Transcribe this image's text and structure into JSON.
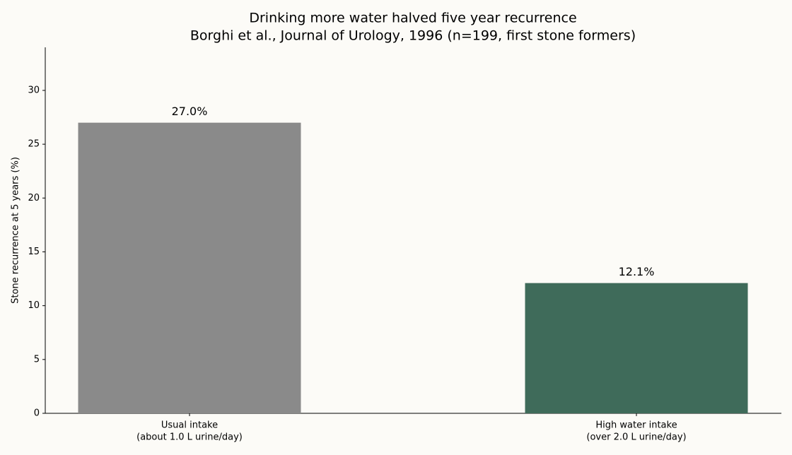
{
  "chart_data": {
    "type": "bar",
    "title": "Drinking more water halved five year recurrence",
    "subtitle": "Borghi et al., Journal of Urology, 1996 (n=199, first stone formers)",
    "y_label": "Stone recurrence at 5 years (%)",
    "categories": [
      [
        "Usual intake",
        "(about 1.0 L urine/day)"
      ],
      [
        "High water intake",
        "(over 2.0 L urine/day)"
      ]
    ],
    "values": [
      27.0,
      12.1
    ],
    "value_labels": [
      "27.0%",
      "12.1%"
    ],
    "colors": [
      "#8a8a8a",
      "#3f6b5a"
    ],
    "ylim": [
      0,
      34
    ],
    "yticks": [
      0,
      5,
      10,
      15,
      20,
      25,
      30
    ],
    "grid": false
  }
}
